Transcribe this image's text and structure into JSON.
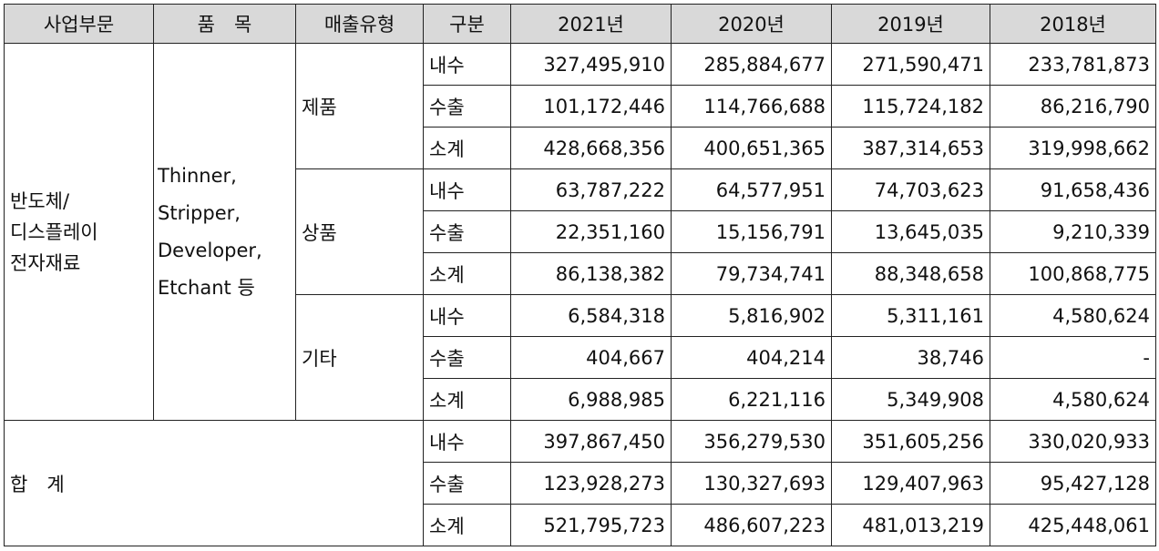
{
  "headers": [
    "사업부문",
    "품　목",
    "매출유형",
    "구분",
    "2021년",
    "2020년",
    "2019년",
    "2018년"
  ],
  "segment": {
    "label_lines": [
      "반도체/",
      "디스플레이",
      "전자재료"
    ],
    "product_lines": [
      "Thinner,",
      "Stripper,",
      "Developer,",
      "Etchant 등"
    ],
    "groups": [
      {
        "type": "제품",
        "rows": [
          {
            "kind": "내수",
            "values": [
              "327,495,910",
              "285,884,677",
              "271,590,471",
              "233,781,873"
            ]
          },
          {
            "kind": "수출",
            "values": [
              "101,172,446",
              "114,766,688",
              "115,724,182",
              "86,216,790"
            ]
          },
          {
            "kind": "소계",
            "values": [
              "428,668,356",
              "400,651,365",
              "387,314,653",
              "319,998,662"
            ]
          }
        ]
      },
      {
        "type": "상품",
        "rows": [
          {
            "kind": "내수",
            "values": [
              "63,787,222",
              "64,577,951",
              "74,703,623",
              "91,658,436"
            ]
          },
          {
            "kind": "수출",
            "values": [
              "22,351,160",
              "15,156,791",
              "13,645,035",
              "9,210,339"
            ]
          },
          {
            "kind": "소계",
            "values": [
              "86,138,382",
              "79,734,741",
              "88,348,658",
              "100,868,775"
            ]
          }
        ]
      },
      {
        "type": "기타",
        "rows": [
          {
            "kind": "내수",
            "values": [
              "6,584,318",
              "5,816,902",
              "5,311,161",
              "4,580,624"
            ]
          },
          {
            "kind": "수출",
            "values": [
              "404,667",
              "404,214",
              "38,746",
              "-"
            ]
          },
          {
            "kind": "소계",
            "values": [
              "6,988,985",
              "6,221,116",
              "5,349,908",
              "4,580,624"
            ]
          }
        ]
      }
    ]
  },
  "total": {
    "label": "합　계",
    "rows": [
      {
        "kind": "내수",
        "values": [
          "397,867,450",
          "356,279,530",
          "351,605,256",
          "330,020,933"
        ]
      },
      {
        "kind": "수출",
        "values": [
          "123,928,273",
          "130,327,693",
          "129,407,963",
          "95,427,128"
        ]
      },
      {
        "kind": "소계",
        "values": [
          "521,795,723",
          "486,607,223",
          "481,013,219",
          "425,448,061"
        ]
      }
    ]
  }
}
